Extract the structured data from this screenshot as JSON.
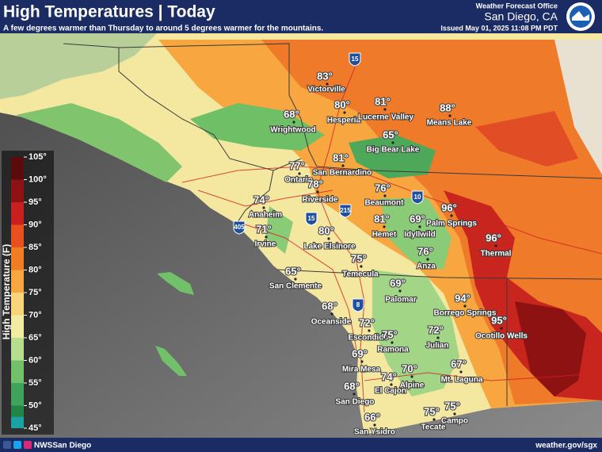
{
  "header": {
    "title": "High Temperatures | Today",
    "subtitle": "A few degrees warmer than Thursday to around 5 degrees warmer for the mountains.",
    "office": "Weather Forecast Office",
    "location": "San Diego, CA",
    "issued": "Issued May 01, 2025 11:08 PM PDT"
  },
  "legend": {
    "title": "High Temperature (F)",
    "items": [
      {
        "label": "105°",
        "color": "#5a0b0b"
      },
      {
        "label": "100°",
        "color": "#8e1212"
      },
      {
        "label": "95°",
        "color": "#c81f1f"
      },
      {
        "label": "90°",
        "color": "#e8501f"
      },
      {
        "label": "85°",
        "color": "#f07d24"
      },
      {
        "label": "80°",
        "color": "#f7a640"
      },
      {
        "label": "75°",
        "color": "#fad47a"
      },
      {
        "label": "70°",
        "color": "#f2eca2"
      },
      {
        "label": "65°",
        "color": "#b7de8f"
      },
      {
        "label": "60°",
        "color": "#72c16a"
      },
      {
        "label": "55°",
        "color": "#3ea45a"
      },
      {
        "label": "50°",
        "color": "#228548"
      },
      {
        "label": "45°",
        "color": "#1aa3a3"
      }
    ]
  },
  "cities": [
    {
      "name": "Victorville",
      "temp": "83°"
    },
    {
      "name": "Hesperia",
      "temp": "80°"
    },
    {
      "name": "Lucerne Valley",
      "temp": "81°"
    },
    {
      "name": "Means Lake",
      "temp": "88°"
    },
    {
      "name": "Wrightwood",
      "temp": "68°"
    },
    {
      "name": "Big Bear Lake",
      "temp": "65°"
    },
    {
      "name": "San Bernardino",
      "temp": "81°"
    },
    {
      "name": "Ontario",
      "temp": "77°"
    },
    {
      "name": "Riverside",
      "temp": "78°"
    },
    {
      "name": "Beaumont",
      "temp": "76°"
    },
    {
      "name": "Anaheim",
      "temp": "74°"
    },
    {
      "name": "Palm Springs",
      "temp": "96°"
    },
    {
      "name": "Hemet",
      "temp": "81°"
    },
    {
      "name": "Idyllwild",
      "temp": "69°"
    },
    {
      "name": "Irvine",
      "temp": "71°"
    },
    {
      "name": "Lake Elsinore",
      "temp": "80°"
    },
    {
      "name": "Thermal",
      "temp": "96°"
    },
    {
      "name": "Anza",
      "temp": "76°"
    },
    {
      "name": "Temecula",
      "temp": "75°"
    },
    {
      "name": "San Clemente",
      "temp": "65°"
    },
    {
      "name": "Palomar",
      "temp": "69°"
    },
    {
      "name": "Borrego Springs",
      "temp": "94°"
    },
    {
      "name": "Oceanside",
      "temp": "68°"
    },
    {
      "name": "Ocotillo Wells",
      "temp": "95°"
    },
    {
      "name": "Escondido",
      "temp": "72°"
    },
    {
      "name": "Ramona",
      "temp": "75°"
    },
    {
      "name": "Julian",
      "temp": "72°"
    },
    {
      "name": "Mira Mesa",
      "temp": "69°"
    },
    {
      "name": "Alpine",
      "temp": "70°"
    },
    {
      "name": "El Cajon",
      "temp": "74°"
    },
    {
      "name": "Mt. Laguna",
      "temp": "67°"
    },
    {
      "name": "San Diego",
      "temp": "68°"
    },
    {
      "name": "Campo",
      "temp": "75°"
    },
    {
      "name": "Tecate",
      "temp": "75°"
    },
    {
      "name": "San Ysidro",
      "temp": "66°"
    }
  ],
  "highways": [
    "15",
    "10",
    "215",
    "405",
    "15",
    "8"
  ],
  "footer": {
    "handle": "NWSSan Diego",
    "url": "weather.gov/sgx"
  }
}
